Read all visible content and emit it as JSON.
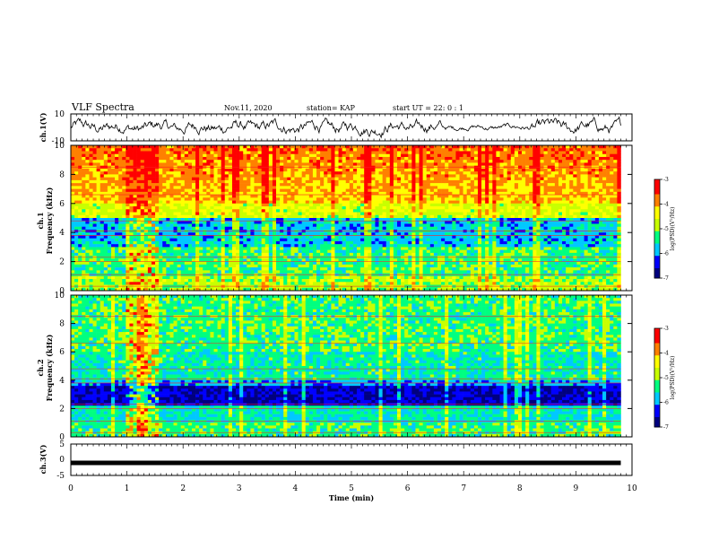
{
  "header": {
    "title": "VLF Spectra",
    "date": "Nov.11, 2020",
    "station": "station= KAP",
    "start": "start  UT =  22: 0  : 1"
  },
  "chart_data": [
    {
      "type": "line",
      "ylabel": "ch.1(V)",
      "ylim": [
        -10,
        10
      ],
      "y_ticks": [
        "10",
        "-10"
      ],
      "xlim": [
        0,
        10
      ],
      "grid": false,
      "description_values": "time series of ch.1 voltage, approx between -5 and 5 V"
    },
    {
      "type": "heatmap",
      "ylabel": "ch.1\nFrequency (kHz)",
      "ylim": [
        0,
        10
      ],
      "y_ticks": [
        "0",
        "2",
        "4",
        "6",
        "8",
        "10"
      ],
      "xlim": [
        0,
        10
      ],
      "colorbar": {
        "label": "log(PSD)(V²/Hz)",
        "range": [
          -7,
          -3
        ],
        "ticks": [
          "-3",
          "-4",
          "-5",
          "-6",
          "-7"
        ]
      },
      "colors": [
        "#00007f",
        "#0000ff",
        "#00c8ff",
        "#00ff80",
        "#c8ff00",
        "#ffff00",
        "#ff8000",
        "#ff0000",
        "#ffffff"
      ]
    },
    {
      "type": "heatmap",
      "ylabel": "ch.2\nFrequency (kHz)",
      "ylim": [
        0,
        10
      ],
      "y_ticks": [
        "0",
        "2",
        "4",
        "6",
        "8",
        "10"
      ],
      "xlim": [
        0,
        10
      ],
      "colorbar": {
        "label": "log(PSD)(V²/Hz)",
        "range": [
          -7,
          -3
        ],
        "ticks": [
          "-3",
          "-4",
          "-5",
          "-6",
          "-7"
        ]
      },
      "colors": [
        "#00007f",
        "#0000ff",
        "#00c8ff",
        "#00ff80",
        "#c8ff00",
        "#ffff00",
        "#ff8000",
        "#ff0000",
        "#ffffff"
      ]
    },
    {
      "type": "line",
      "ylabel": "ch.3(V)",
      "ylim": [
        -5,
        5
      ],
      "y_ticks": [
        "5",
        "0",
        "-5"
      ],
      "xlim": [
        0,
        10
      ],
      "grid": false,
      "values_note": "constant near -1 V",
      "constant_value": -1
    }
  ],
  "x_axis": {
    "label": "Time (min)",
    "ticks": [
      "0",
      "1",
      "2",
      "3",
      "4",
      "5",
      "6",
      "7",
      "8",
      "9",
      "10"
    ]
  }
}
